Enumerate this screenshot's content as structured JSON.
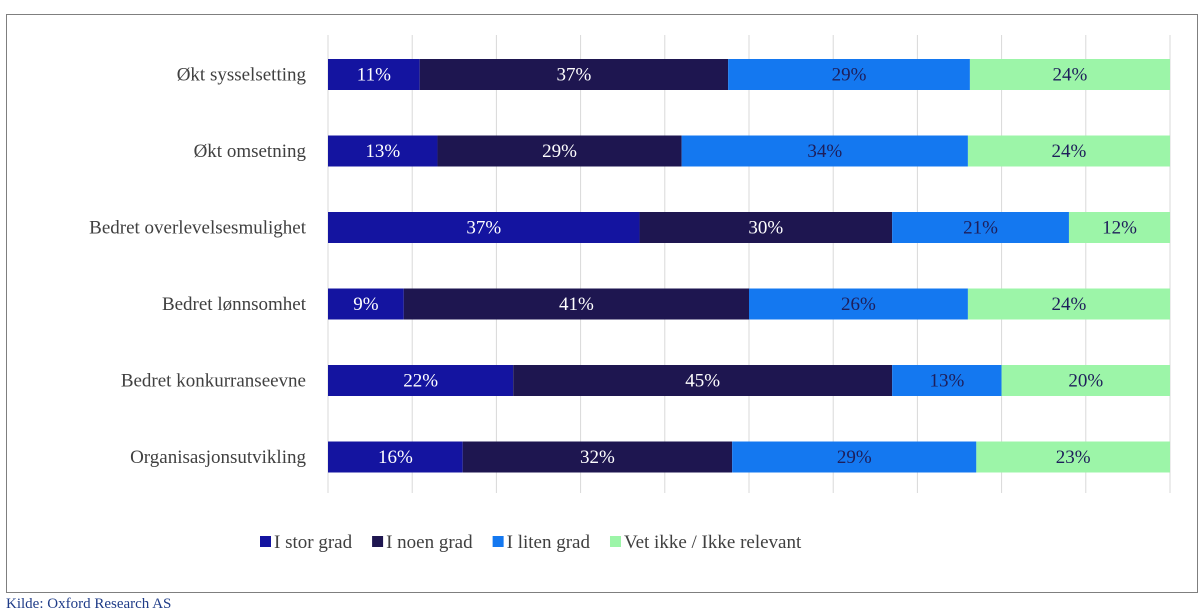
{
  "source_note": "Kilde: Oxford Research AS",
  "chart_data": {
    "type": "bar",
    "orientation": "horizontal",
    "stacked": true,
    "percent": true,
    "categories": [
      "Økt sysselsetting",
      "Økt omsetning",
      "Bedret overlevelsesmulighet",
      "Bedret lønnsomhet",
      "Bedret konkurranseevne",
      "Organisasjonsutvikling"
    ],
    "series": [
      {
        "name": "I stor grad",
        "color": "#1414a0",
        "values": [
          11,
          13,
          37,
          9,
          22,
          16
        ]
      },
      {
        "name": "I noen grad",
        "color": "#1e1650",
        "values": [
          37,
          29,
          30,
          41,
          45,
          32
        ]
      },
      {
        "name": "I liten grad",
        "color": "#1478f0",
        "values": [
          29,
          34,
          21,
          26,
          13,
          29
        ]
      },
      {
        "name": "Vet ikke / Ikke relevant",
        "color": "#9cf5a8",
        "values": [
          24,
          24,
          12,
          24,
          20,
          23
        ]
      }
    ],
    "data_label_colors": [
      "#ffffff",
      "#ffffff",
      "#1e1e5a",
      "#1e1e5a"
    ],
    "grid": true,
    "legend_position": "bottom",
    "xlim": [
      0,
      100
    ]
  }
}
